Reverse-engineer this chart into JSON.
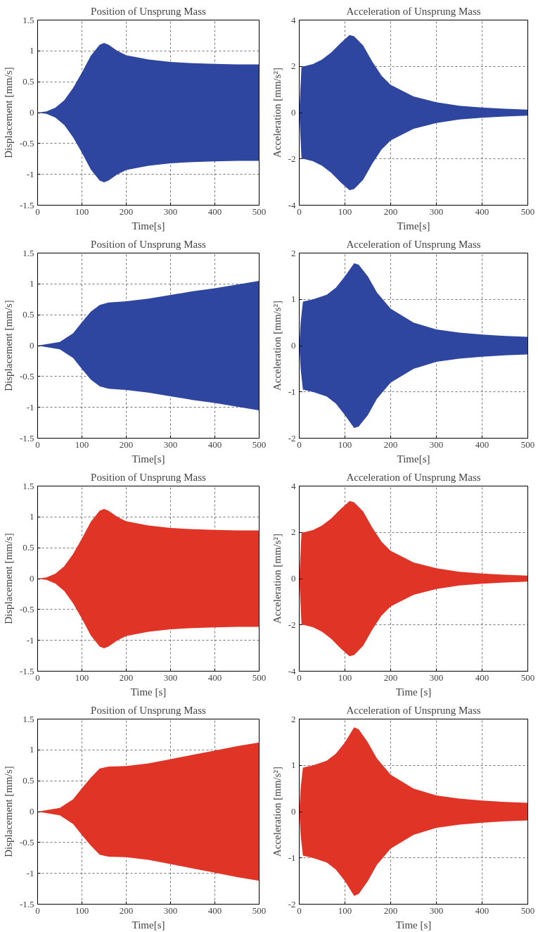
{
  "chart_data": [
    {
      "type": "area",
      "title": "Position of Unsprung Mass",
      "xlabel": "Time[s]",
      "ylabel": "Displacement [mm/s]",
      "xlim": [
        0,
        500
      ],
      "xticks": [
        0,
        100,
        200,
        300,
        400,
        500
      ],
      "ylim": [
        -1.5,
        1.5
      ],
      "yticks": [
        -1.5,
        -1,
        -0.5,
        0,
        0.5,
        1,
        1.5
      ],
      "grid": true,
      "x": [
        0,
        20,
        40,
        60,
        80,
        100,
        120,
        140,
        150,
        160,
        180,
        200,
        250,
        300,
        350,
        400,
        450,
        500
      ],
      "series": [
        {
          "color": "#2f46a0",
          "values": [
            0,
            0.02,
            0.08,
            0.2,
            0.4,
            0.65,
            0.92,
            1.1,
            1.13,
            1.1,
            1.0,
            0.93,
            0.86,
            0.82,
            0.8,
            0.79,
            0.78,
            0.78
          ]
        },
        {
          "color": "#2f46a0",
          "values": [
            0,
            -0.02,
            -0.08,
            -0.2,
            -0.4,
            -0.65,
            -0.92,
            -1.1,
            -1.13,
            -1.1,
            -1.0,
            -0.93,
            -0.86,
            -0.82,
            -0.8,
            -0.79,
            -0.78,
            -0.78
          ]
        }
      ]
    },
    {
      "type": "area",
      "title": "Acceleration of Unsprung Mass",
      "xlabel": "Time[s]",
      "ylabel": "Acceleration [mm/s²]",
      "xlim": [
        0,
        500
      ],
      "xticks": [
        0,
        100,
        200,
        300,
        400,
        500
      ],
      "ylim": [
        -4,
        4
      ],
      "yticks": [
        -4,
        -2,
        0,
        2,
        4
      ],
      "grid": true,
      "x": [
        0,
        2,
        5,
        10,
        30,
        50,
        70,
        90,
        110,
        120,
        140,
        160,
        180,
        200,
        250,
        300,
        350,
        400,
        450,
        500
      ],
      "series": [
        {
          "color": "#2f46a0",
          "values": [
            0,
            0.8,
            2.0,
            2.0,
            2.1,
            2.3,
            2.6,
            3.0,
            3.35,
            3.3,
            2.9,
            2.2,
            1.6,
            1.2,
            0.7,
            0.45,
            0.3,
            0.22,
            0.17,
            0.13
          ]
        },
        {
          "color": "#2f46a0",
          "values": [
            0,
            -0.8,
            -2.0,
            -2.0,
            -2.1,
            -2.3,
            -2.6,
            -3.0,
            -3.35,
            -3.3,
            -2.9,
            -2.2,
            -1.6,
            -1.2,
            -0.7,
            -0.45,
            -0.3,
            -0.22,
            -0.17,
            -0.13
          ]
        }
      ]
    },
    {
      "type": "area",
      "title": "Position of Unsprung Mass",
      "xlabel": "Time[s]",
      "ylabel": "Displacement [mm/s]",
      "xlim": [
        0,
        500
      ],
      "xticks": [
        0,
        100,
        200,
        300,
        400,
        500
      ],
      "ylim": [
        -1.5,
        1.5
      ],
      "yticks": [
        -1.5,
        -1,
        -0.5,
        0,
        0.5,
        1,
        1.5
      ],
      "grid": true,
      "x": [
        0,
        50,
        80,
        100,
        120,
        140,
        160,
        200,
        250,
        300,
        350,
        400,
        450,
        500
      ],
      "series": [
        {
          "color": "#2f46a0",
          "values": [
            0,
            0.06,
            0.2,
            0.38,
            0.55,
            0.66,
            0.7,
            0.72,
            0.76,
            0.82,
            0.88,
            0.93,
            0.99,
            1.05
          ]
        },
        {
          "color": "#2f46a0",
          "values": [
            0,
            -0.06,
            -0.2,
            -0.38,
            -0.55,
            -0.66,
            -0.7,
            -0.72,
            -0.76,
            -0.82,
            -0.88,
            -0.93,
            -0.99,
            -1.05
          ]
        }
      ]
    },
    {
      "type": "area",
      "title": "Acceleration of Unsprung Mass",
      "xlabel": "Time[s]",
      "ylabel": "Acceleration [mm/s²]",
      "xlim": [
        0,
        500
      ],
      "xticks": [
        0,
        100,
        200,
        300,
        400,
        500
      ],
      "ylim": [
        -2,
        2
      ],
      "yticks": [
        -2,
        -1,
        0,
        1,
        2
      ],
      "grid": true,
      "x": [
        0,
        3,
        8,
        30,
        60,
        80,
        100,
        120,
        130,
        150,
        170,
        200,
        250,
        300,
        350,
        400,
        450,
        500
      ],
      "series": [
        {
          "color": "#2f46a0",
          "values": [
            0,
            0.5,
            0.95,
            1.0,
            1.1,
            1.25,
            1.5,
            1.78,
            1.75,
            1.5,
            1.15,
            0.8,
            0.5,
            0.35,
            0.28,
            0.24,
            0.21,
            0.19
          ]
        },
        {
          "color": "#2f46a0",
          "values": [
            0,
            -0.5,
            -0.95,
            -1.0,
            -1.1,
            -1.25,
            -1.5,
            -1.78,
            -1.75,
            -1.5,
            -1.15,
            -0.8,
            -0.5,
            -0.35,
            -0.28,
            -0.24,
            -0.21,
            -0.19
          ]
        }
      ]
    },
    {
      "type": "area",
      "title": "Position of Unsprung Mass",
      "xlabel": "Time [s]",
      "ylabel": "Displacement [mm/s]",
      "xlim": [
        0,
        500
      ],
      "xticks": [
        0,
        100,
        200,
        300,
        400,
        500
      ],
      "ylim": [
        -1.5,
        1.5
      ],
      "yticks": [
        -1.5,
        -1,
        -0.5,
        0,
        0.5,
        1,
        1.5
      ],
      "grid": true,
      "x": [
        0,
        20,
        40,
        60,
        80,
        100,
        120,
        140,
        150,
        160,
        180,
        200,
        250,
        300,
        350,
        400,
        450,
        500
      ],
      "series": [
        {
          "color": "#e03426",
          "values": [
            0,
            0.02,
            0.08,
            0.2,
            0.4,
            0.65,
            0.92,
            1.1,
            1.13,
            1.1,
            1.0,
            0.93,
            0.86,
            0.82,
            0.8,
            0.79,
            0.78,
            0.78
          ]
        },
        {
          "color": "#e03426",
          "values": [
            0,
            -0.02,
            -0.08,
            -0.2,
            -0.4,
            -0.65,
            -0.92,
            -1.1,
            -1.13,
            -1.1,
            -1.0,
            -0.93,
            -0.86,
            -0.82,
            -0.8,
            -0.79,
            -0.78,
            -0.78
          ]
        }
      ]
    },
    {
      "type": "area",
      "title": "Acceleration of Unsprung Mass",
      "xlabel": "Time [s]",
      "ylabel": "Acceleration [mm/s²]",
      "xlim": [
        0,
        500
      ],
      "xticks": [
        0,
        100,
        200,
        300,
        400,
        500
      ],
      "ylim": [
        -4,
        4
      ],
      "yticks": [
        -4,
        -2,
        0,
        2,
        4
      ],
      "grid": true,
      "x": [
        0,
        2,
        5,
        10,
        30,
        50,
        70,
        90,
        110,
        120,
        140,
        160,
        180,
        200,
        250,
        300,
        350,
        400,
        450,
        500
      ],
      "series": [
        {
          "color": "#e03426",
          "values": [
            0,
            0.8,
            2.0,
            2.0,
            2.1,
            2.3,
            2.6,
            3.0,
            3.35,
            3.3,
            2.9,
            2.2,
            1.6,
            1.2,
            0.7,
            0.45,
            0.3,
            0.22,
            0.17,
            0.13
          ]
        },
        {
          "color": "#e03426",
          "values": [
            0,
            -0.8,
            -2.0,
            -2.0,
            -2.1,
            -2.3,
            -2.6,
            -3.0,
            -3.35,
            -3.3,
            -2.9,
            -2.2,
            -1.6,
            -1.2,
            -0.7,
            -0.45,
            -0.3,
            -0.22,
            -0.17,
            -0.13
          ]
        }
      ]
    },
    {
      "type": "area",
      "title": "Position of Unsprung Mass",
      "xlabel": "Time[s]",
      "ylabel": "Displacement [mm/s]",
      "xlim": [
        0,
        500
      ],
      "xticks": [
        0,
        100,
        200,
        300,
        400,
        500
      ],
      "ylim": [
        -1.5,
        1.5
      ],
      "yticks": [
        -1.5,
        -1,
        -0.5,
        0,
        0.5,
        1,
        1.5
      ],
      "grid": true,
      "x": [
        0,
        50,
        80,
        100,
        120,
        140,
        160,
        200,
        250,
        300,
        350,
        400,
        450,
        500
      ],
      "series": [
        {
          "color": "#e03426",
          "values": [
            0,
            0.06,
            0.2,
            0.38,
            0.55,
            0.7,
            0.73,
            0.74,
            0.78,
            0.85,
            0.92,
            0.99,
            1.06,
            1.12
          ]
        },
        {
          "color": "#e03426",
          "values": [
            0,
            -0.06,
            -0.2,
            -0.38,
            -0.55,
            -0.7,
            -0.73,
            -0.74,
            -0.78,
            -0.85,
            -0.92,
            -0.99,
            -1.06,
            -1.12
          ]
        }
      ]
    },
    {
      "type": "area",
      "title": "Acceleration of Unsprung Mass",
      "xlabel": "Time [s]",
      "ylabel": "Acceleration [mm/s²]",
      "xlim": [
        0,
        500
      ],
      "xticks": [
        0,
        100,
        200,
        300,
        400,
        500
      ],
      "ylim": [
        -2,
        2
      ],
      "yticks": [
        -2,
        -1,
        0,
        1,
        2
      ],
      "grid": true,
      "x": [
        0,
        3,
        8,
        30,
        60,
        80,
        100,
        120,
        130,
        150,
        170,
        200,
        250,
        300,
        350,
        400,
        450,
        500
      ],
      "series": [
        {
          "color": "#e03426",
          "values": [
            0,
            0.5,
            0.95,
            1.0,
            1.1,
            1.25,
            1.5,
            1.82,
            1.78,
            1.5,
            1.15,
            0.8,
            0.5,
            0.35,
            0.28,
            0.24,
            0.21,
            0.19
          ]
        },
        {
          "color": "#e03426",
          "values": [
            0,
            -0.5,
            -0.95,
            -1.0,
            -1.1,
            -1.25,
            -1.5,
            -1.82,
            -1.78,
            -1.5,
            -1.15,
            -0.8,
            -0.5,
            -0.35,
            -0.28,
            -0.24,
            -0.21,
            -0.19
          ]
        }
      ]
    }
  ]
}
